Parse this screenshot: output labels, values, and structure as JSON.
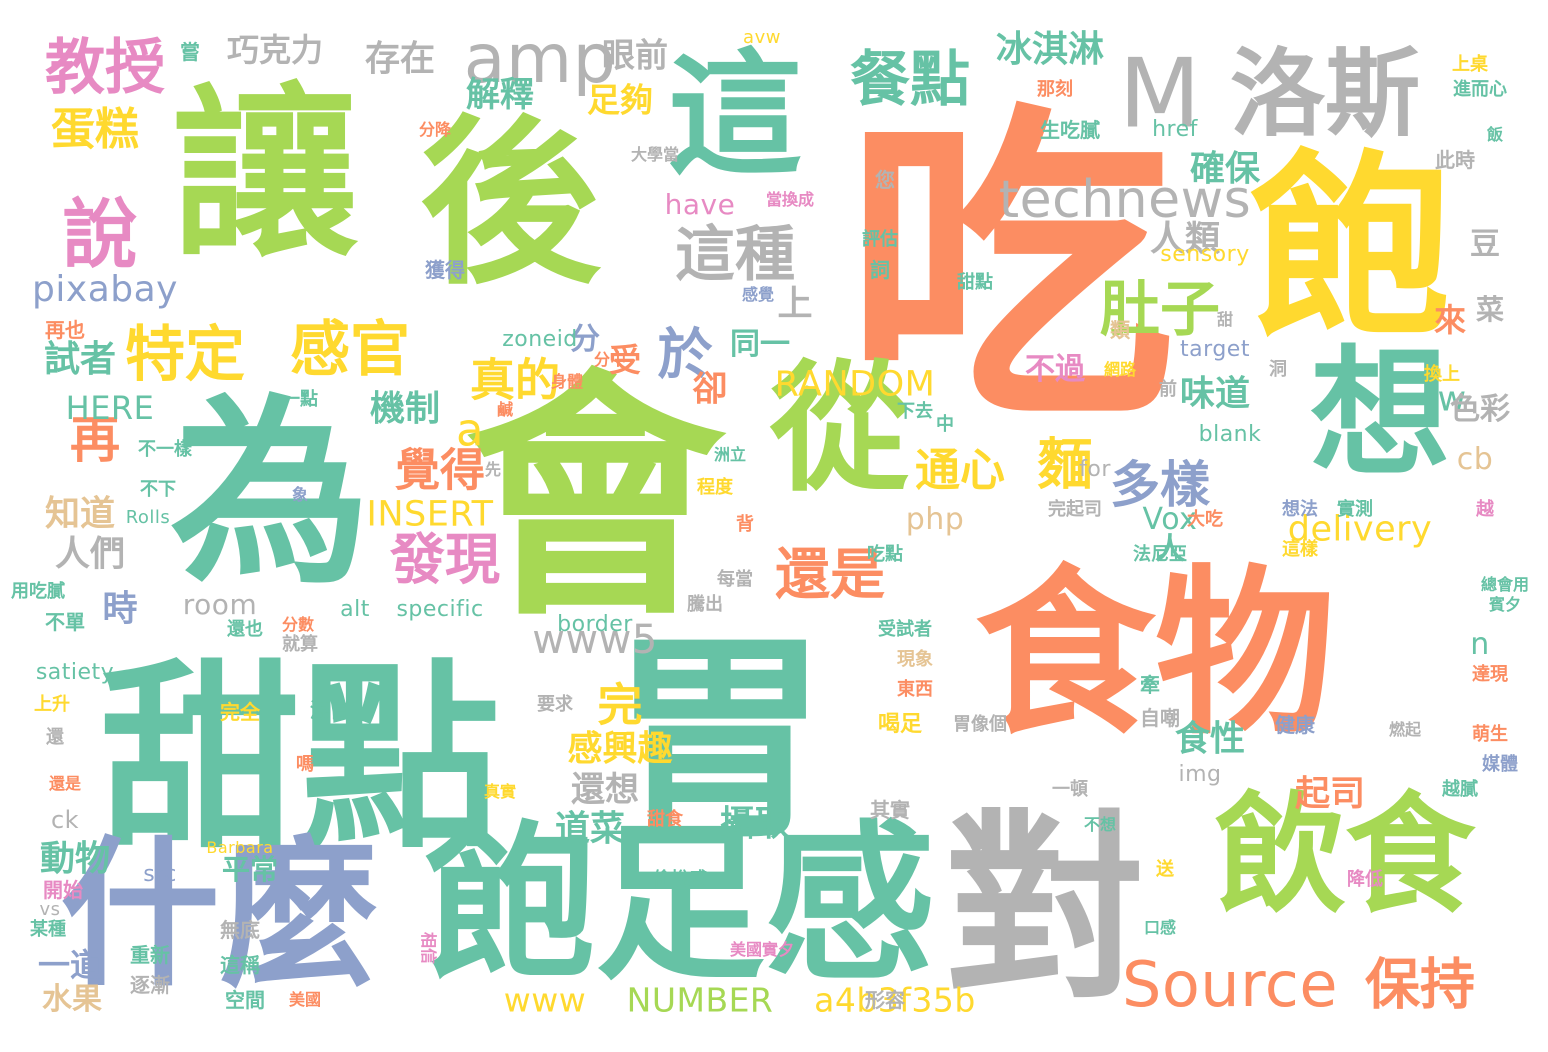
{
  "palette": {
    "salmon": "#fc8d62",
    "green": "#a6d854",
    "teal": "#66c2a5",
    "gray": "#b3b3b3",
    "blue": "#8da0cb",
    "yellow": "#ffd92f",
    "pink": "#e78ac3",
    "tan": "#e5c494"
  },
  "words": [
    {
      "text": "吃",
      "color": "salmon"
    },
    {
      "text": "讓",
      "color": "green"
    },
    {
      "text": "後",
      "color": "green"
    },
    {
      "text": "會",
      "color": "green"
    },
    {
      "text": "為",
      "color": "teal"
    },
    {
      "text": "甜點",
      "color": "teal"
    },
    {
      "text": "胃",
      "color": "teal"
    },
    {
      "text": "食物",
      "color": "salmon"
    },
    {
      "text": "對",
      "color": "gray"
    },
    {
      "text": "什麼",
      "color": "blue"
    },
    {
      "text": "飽足感",
      "color": "teal"
    },
    {
      "text": "飽",
      "color": "yellow"
    },
    {
      "text": "飲食",
      "color": "green"
    },
    {
      "text": "這",
      "color": "teal"
    },
    {
      "text": "從",
      "color": "green"
    },
    {
      "text": "想",
      "color": "teal"
    },
    {
      "text": "M",
      "color": "gray"
    },
    {
      "text": "洛斯",
      "color": "gray"
    },
    {
      "text": "amp",
      "color": "gray"
    },
    {
      "text": "教授",
      "color": "pink"
    },
    {
      "text": "說",
      "color": "pink"
    },
    {
      "text": "餐點",
      "color": "teal"
    },
    {
      "text": "特定",
      "color": "yellow"
    },
    {
      "text": "感官",
      "color": "yellow"
    },
    {
      "text": "這種",
      "color": "gray"
    },
    {
      "text": "technews",
      "color": "gray"
    },
    {
      "text": "肚子",
      "color": "green"
    },
    {
      "text": "多樣",
      "color": "blue"
    },
    {
      "text": "Source",
      "color": "salmon"
    },
    {
      "text": "保持",
      "color": "salmon"
    },
    {
      "text": "發現",
      "color": "pink"
    },
    {
      "text": "還是",
      "color": "salmon"
    },
    {
      "text": "蛋糕",
      "color": "yellow"
    },
    {
      "text": "巧克力",
      "color": "gray"
    },
    {
      "text": "存在",
      "color": "gray"
    },
    {
      "text": "眼前",
      "color": "gray"
    },
    {
      "text": "冰淇淋",
      "color": "teal"
    },
    {
      "text": "解釋",
      "color": "teal"
    },
    {
      "text": "足夠",
      "color": "yellow"
    },
    {
      "text": "確保",
      "color": "teal"
    },
    {
      "text": "人類",
      "color": "gray"
    },
    {
      "text": "於",
      "color": "blue"
    },
    {
      "text": "真的",
      "color": "yellow"
    },
    {
      "text": "a",
      "color": "yellow"
    },
    {
      "text": "再",
      "color": "salmon"
    },
    {
      "text": "pixabay",
      "color": "blue"
    },
    {
      "text": "試者",
      "color": "teal"
    },
    {
      "text": "HERE",
      "color": "teal"
    },
    {
      "text": "機制",
      "color": "teal"
    },
    {
      "text": "覺得",
      "color": "salmon"
    },
    {
      "text": "通心",
      "color": "yellow"
    },
    {
      "text": "麵",
      "color": "yellow"
    },
    {
      "text": "INSERT",
      "color": "yellow"
    },
    {
      "text": "php",
      "color": "tan"
    },
    {
      "text": "Vox",
      "color": "teal"
    },
    {
      "text": "delivery",
      "color": "yellow"
    },
    {
      "text": "www5",
      "color": "gray"
    },
    {
      "text": "完",
      "color": "yellow"
    },
    {
      "text": "感興趣",
      "color": "yellow"
    },
    {
      "text": "還想",
      "color": "gray"
    },
    {
      "text": "食性",
      "color": "teal"
    },
    {
      "text": "起司",
      "color": "salmon"
    },
    {
      "text": "攝取",
      "color": "teal"
    },
    {
      "text": "道菜",
      "color": "teal"
    },
    {
      "text": "RANDOM",
      "color": "yellow"
    },
    {
      "text": "NUMBER",
      "color": "green"
    },
    {
      "text": "a4b3f35b",
      "color": "yellow"
    },
    {
      "text": "www",
      "color": "yellow"
    },
    {
      "text": "人們",
      "color": "gray"
    },
    {
      "text": "知道",
      "color": "tan"
    },
    {
      "text": "時",
      "color": "blue"
    },
    {
      "text": "room",
      "color": "gray"
    },
    {
      "text": "動物",
      "color": "teal"
    },
    {
      "text": "一道",
      "color": "blue"
    },
    {
      "text": "水果",
      "color": "tan"
    },
    {
      "text": "平常",
      "color": "teal"
    },
    {
      "text": "味道",
      "color": "teal"
    },
    {
      "text": "不過",
      "color": "pink"
    },
    {
      "text": "卻",
      "color": "salmon"
    },
    {
      "text": "受",
      "color": "salmon"
    },
    {
      "text": "分",
      "color": "blue"
    },
    {
      "text": "同一",
      "color": "teal"
    },
    {
      "text": "上",
      "color": "gray"
    },
    {
      "text": "tw",
      "color": "teal"
    },
    {
      "text": "色彩",
      "color": "gray"
    },
    {
      "text": "cb",
      "color": "tan"
    },
    {
      "text": "n",
      "color": "teal"
    },
    {
      "text": "人",
      "color": "teal"
    },
    {
      "text": "來",
      "color": "salmon"
    },
    {
      "text": "菜",
      "color": "gray"
    },
    {
      "text": "豆",
      "color": "gray"
    },
    {
      "text": "have",
      "color": "pink"
    },
    {
      "text": "sensory",
      "color": "yellow"
    },
    {
      "text": "href",
      "color": "teal"
    },
    {
      "text": "zoneid",
      "color": "teal"
    },
    {
      "text": "target",
      "color": "blue"
    },
    {
      "text": "blank",
      "color": "teal"
    },
    {
      "text": "for",
      "color": "gray"
    },
    {
      "text": "img",
      "color": "gray"
    },
    {
      "text": "border",
      "color": "teal"
    },
    {
      "text": "specific",
      "color": "teal"
    },
    {
      "text": "alt",
      "color": "teal"
    },
    {
      "text": "satiety",
      "color": "teal"
    },
    {
      "text": "src",
      "color": "blue"
    },
    {
      "text": "ck",
      "color": "gray"
    },
    {
      "text": "vs",
      "color": "gray"
    },
    {
      "text": "avw",
      "color": "yellow"
    },
    {
      "text": "Barbara",
      "color": "yellow"
    },
    {
      "text": "Rolls",
      "color": "teal"
    },
    {
      "text": "再也",
      "color": "salmon"
    },
    {
      "text": "一點",
      "color": "teal"
    },
    {
      "text": "不一樣",
      "color": "teal"
    },
    {
      "text": "不下",
      "color": "teal"
    },
    {
      "text": "不單",
      "color": "teal"
    },
    {
      "text": "用吃膩",
      "color": "teal"
    },
    {
      "text": "開始",
      "color": "pink"
    },
    {
      "text": "某種",
      "color": "teal"
    },
    {
      "text": "上升",
      "color": "yellow"
    },
    {
      "text": "還",
      "color": "gray"
    },
    {
      "text": "還是",
      "color": "salmon"
    },
    {
      "text": "還也",
      "color": "teal"
    },
    {
      "text": "完全",
      "color": "yellow"
    },
    {
      "text": "源自",
      "color": "teal"
    },
    {
      "text": "嗎",
      "color": "salmon"
    },
    {
      "text": "分數",
      "color": "salmon"
    },
    {
      "text": "就算",
      "color": "gray"
    },
    {
      "text": "無底",
      "color": "gray"
    },
    {
      "text": "這稱",
      "color": "teal"
    },
    {
      "text": "空間",
      "color": "teal"
    },
    {
      "text": "重新",
      "color": "teal"
    },
    {
      "text": "逐漸",
      "color": "gray"
    },
    {
      "text": "相信",
      "color": "pink"
    },
    {
      "text": "美國實夕",
      "color": "pink"
    },
    {
      "text": "美國",
      "color": "salmon"
    },
    {
      "text": "形容",
      "color": "gray"
    },
    {
      "text": "其實",
      "color": "gray"
    },
    {
      "text": "偷悅感",
      "color": "teal"
    },
    {
      "text": "甜食",
      "color": "salmon"
    },
    {
      "text": "胃像個",
      "color": "gray"
    },
    {
      "text": "喝足",
      "color": "yellow"
    },
    {
      "text": "東西",
      "color": "salmon"
    },
    {
      "text": "現象",
      "color": "tan"
    },
    {
      "text": "受試者",
      "color": "teal"
    },
    {
      "text": "牽",
      "color": "teal"
    },
    {
      "text": "自嘲",
      "color": "gray"
    },
    {
      "text": "要求",
      "color": "gray"
    },
    {
      "text": "騰出",
      "color": "gray"
    },
    {
      "text": "每當",
      "color": "gray"
    },
    {
      "text": "背",
      "color": "salmon"
    },
    {
      "text": "吃點",
      "color": "teal"
    },
    {
      "text": "法尼亞",
      "color": "teal"
    },
    {
      "text": "大吃",
      "color": "salmon"
    },
    {
      "text": "實測",
      "color": "teal"
    },
    {
      "text": "完起司",
      "color": "gray"
    },
    {
      "text": "想法",
      "color": "blue"
    },
    {
      "text": "這樣",
      "color": "yellow"
    },
    {
      "text": "越",
      "color": "pink"
    },
    {
      "text": "總會用",
      "color": "teal"
    },
    {
      "text": "賓夕",
      "color": "teal"
    },
    {
      "text": "達現",
      "color": "salmon"
    },
    {
      "text": "萌生",
      "color": "salmon"
    },
    {
      "text": "燃起",
      "color": "gray"
    },
    {
      "text": "健康",
      "color": "blue"
    },
    {
      "text": "媒體",
      "color": "blue"
    },
    {
      "text": "越膩",
      "color": "teal"
    },
    {
      "text": "一頓",
      "color": "gray"
    },
    {
      "text": "不想",
      "color": "teal"
    },
    {
      "text": "送",
      "color": "yellow"
    },
    {
      "text": "降低",
      "color": "pink"
    },
    {
      "text": "口感",
      "color": "teal"
    },
    {
      "text": "真實",
      "color": "yellow"
    },
    {
      "text": "象",
      "color": "blue"
    },
    {
      "text": "程度",
      "color": "yellow"
    },
    {
      "text": "洲立",
      "color": "teal"
    },
    {
      "text": "先",
      "color": "gray"
    },
    {
      "text": "鹹",
      "color": "salmon"
    },
    {
      "text": "分中",
      "color": "salmon"
    },
    {
      "text": "下去",
      "color": "teal"
    },
    {
      "text": "中",
      "color": "teal"
    },
    {
      "text": "網路",
      "color": "yellow"
    },
    {
      "text": "前",
      "color": "gray"
    },
    {
      "text": "洞",
      "color": "gray"
    },
    {
      "text": "身體",
      "color": "salmon"
    },
    {
      "text": "類",
      "color": "tan"
    },
    {
      "text": "甜",
      "color": "gray"
    },
    {
      "text": "換上",
      "color": "yellow"
    },
    {
      "text": "甜點",
      "color": "teal"
    },
    {
      "text": "感覺",
      "color": "blue"
    },
    {
      "text": "獲得",
      "color": "blue"
    },
    {
      "text": "詞",
      "color": "teal"
    },
    {
      "text": "評估",
      "color": "teal"
    },
    {
      "text": "您",
      "color": "gray"
    },
    {
      "text": "當換成",
      "color": "pink"
    },
    {
      "text": "大學當",
      "color": "gray"
    },
    {
      "text": "分降",
      "color": "salmon"
    },
    {
      "text": "嘗",
      "color": "teal"
    },
    {
      "text": "那刻",
      "color": "salmon"
    },
    {
      "text": "生吃膩",
      "color": "teal"
    },
    {
      "text": "上桌",
      "color": "yellow"
    },
    {
      "text": "進而心",
      "color": "teal"
    },
    {
      "text": "飯",
      "color": "teal"
    },
    {
      "text": "此時",
      "color": "gray"
    }
  ]
}
